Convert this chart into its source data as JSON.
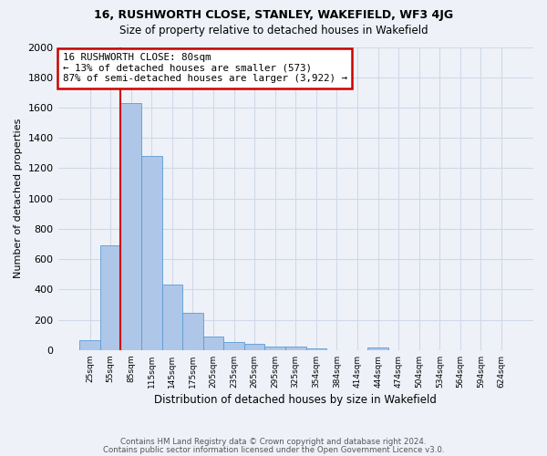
{
  "title1": "16, RUSHWORTH CLOSE, STANLEY, WAKEFIELD, WF3 4JG",
  "title2": "Size of property relative to detached houses in Wakefield",
  "xlabel": "Distribution of detached houses by size in Wakefield",
  "ylabel": "Number of detached properties",
  "footer1": "Contains HM Land Registry data © Crown copyright and database right 2024.",
  "footer2": "Contains public sector information licensed under the Open Government Licence v3.0.",
  "categories": [
    "25sqm",
    "55sqm",
    "85sqm",
    "115sqm",
    "145sqm",
    "175sqm",
    "205sqm",
    "235sqm",
    "265sqm",
    "295sqm",
    "325sqm",
    "354sqm",
    "384sqm",
    "414sqm",
    "444sqm",
    "474sqm",
    "504sqm",
    "534sqm",
    "564sqm",
    "594sqm",
    "624sqm"
  ],
  "values": [
    65,
    690,
    1630,
    1280,
    435,
    248,
    88,
    55,
    42,
    25,
    20,
    12,
    0,
    0,
    18,
    0,
    0,
    0,
    0,
    0,
    0
  ],
  "bar_color": "#aec6e8",
  "bar_edgecolor": "#5b9bd5",
  "grid_color": "#d0d8e8",
  "property_line_x": 1.5,
  "annotation_line1": "16 RUSHWORTH CLOSE: 80sqm",
  "annotation_line2": "← 13% of detached houses are smaller (573)",
  "annotation_line3": "87% of semi-detached houses are larger (3,922) →",
  "annotation_box_color": "#ffffff",
  "annotation_box_edgecolor": "#cc0000",
  "redline_color": "#cc0000",
  "ylim": [
    0,
    2000
  ],
  "yticks": [
    0,
    200,
    400,
    600,
    800,
    1000,
    1200,
    1400,
    1600,
    1800,
    2000
  ],
  "background_color": "#eef2f8"
}
